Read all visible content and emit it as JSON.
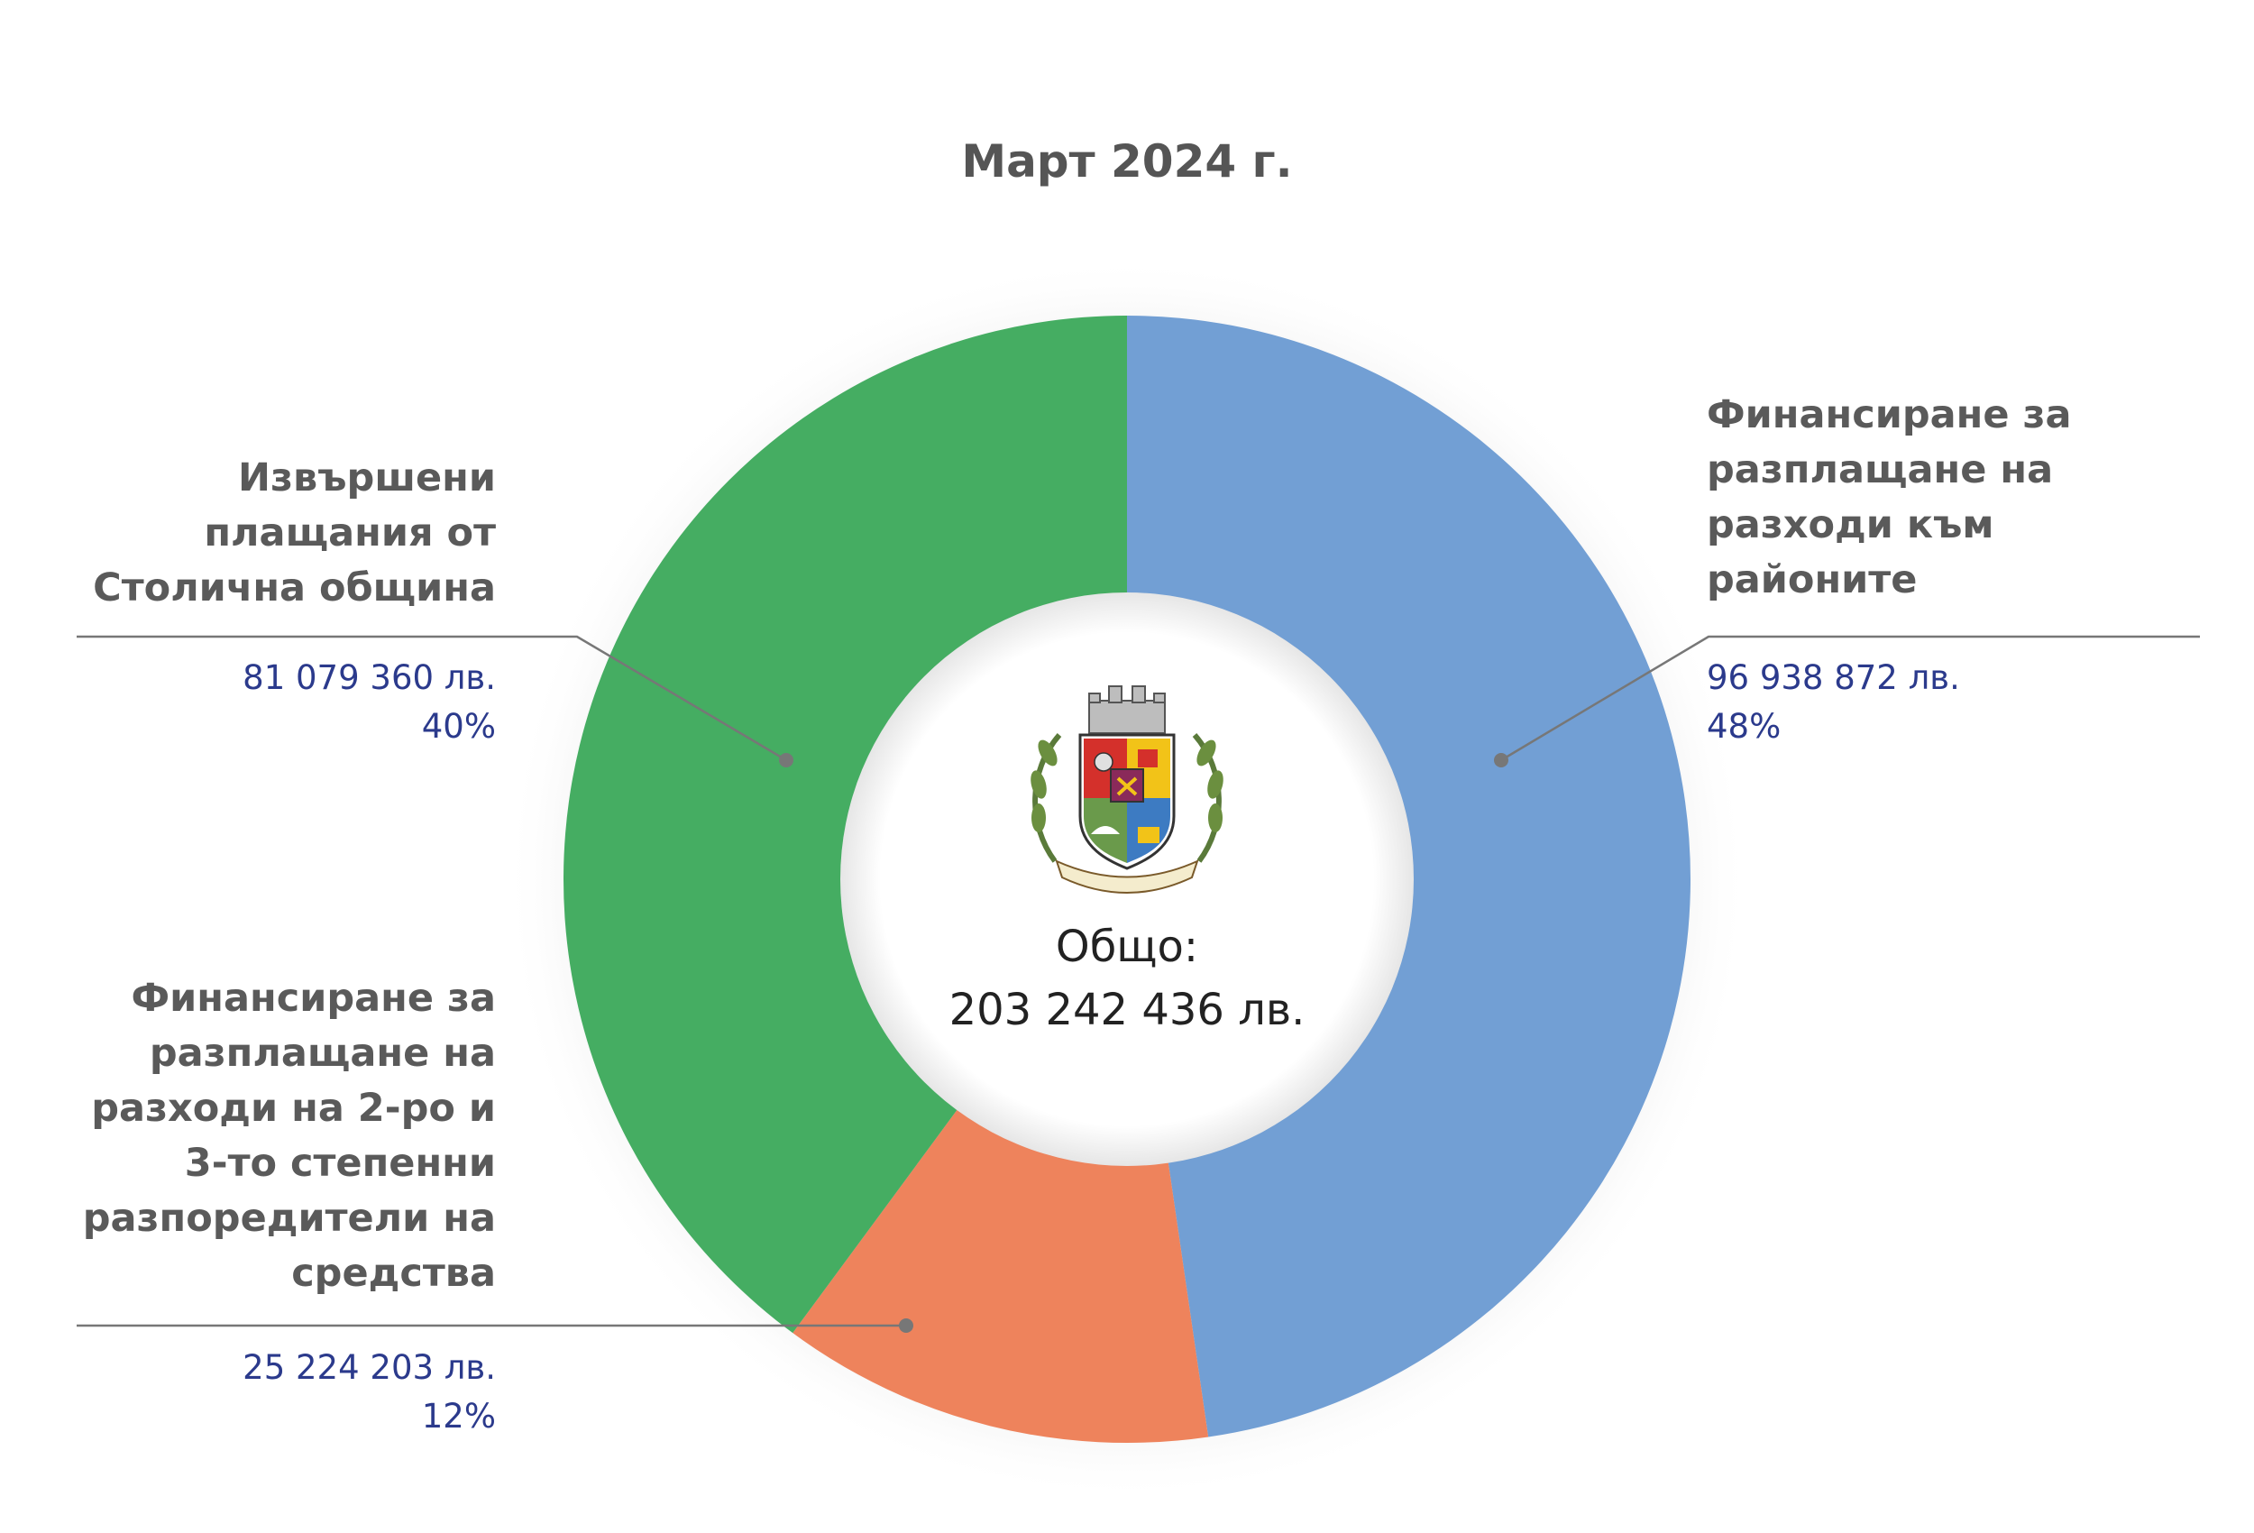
{
  "title": "Март 2024 г.",
  "total": {
    "label": "Общо:",
    "value": "203 242 436 лв."
  },
  "chart_data": {
    "type": "pie",
    "title": "Март 2024 г.",
    "start_angle_deg": 0,
    "direction": "clockwise",
    "series": [
      {
        "name": "Финансиране за разплащане на разходи към районите",
        "value": 96938872,
        "value_label": "96 938 872 лв.",
        "percent_label": "48%",
        "color": "#729fd4"
      },
      {
        "name": "Финансиране за разплащане на разходи на 2-ро и 3-то степенни разпоредители на средства",
        "value": 25224203,
        "value_label": "25 224 203 лв.",
        "percent_label": "12%",
        "color": "#ee835c"
      },
      {
        "name": "Извършени плащания от Столична община",
        "value": 81079360,
        "value_label": "81 079 360 лв.",
        "percent_label": "40%",
        "color": "#45ad62"
      }
    ]
  },
  "labels": {
    "right": {
      "lines": [
        "Финансиране за",
        "разплащане на",
        "разходи към",
        "районите"
      ],
      "value": "96 938 872 лв.",
      "percent": "48%"
    },
    "left_top": {
      "lines": [
        "Извършени",
        "плащания от",
        "Столична община"
      ],
      "value": "81 079 360 лв.",
      "percent": "40%"
    },
    "left_bottom": {
      "lines": [
        "Финансиране за",
        "разплащане на",
        "разходи на 2-ро и",
        "3-то степенни",
        "разпоредители на",
        "средства"
      ],
      "value": "25 224 203 лв.",
      "percent": "12%"
    }
  },
  "colors": {
    "leader": "#777777",
    "value_text": "#2b3a8c",
    "label_text": "#5a5a5a"
  },
  "icons": {
    "center": "sofia-coat-of-arms-icon"
  }
}
